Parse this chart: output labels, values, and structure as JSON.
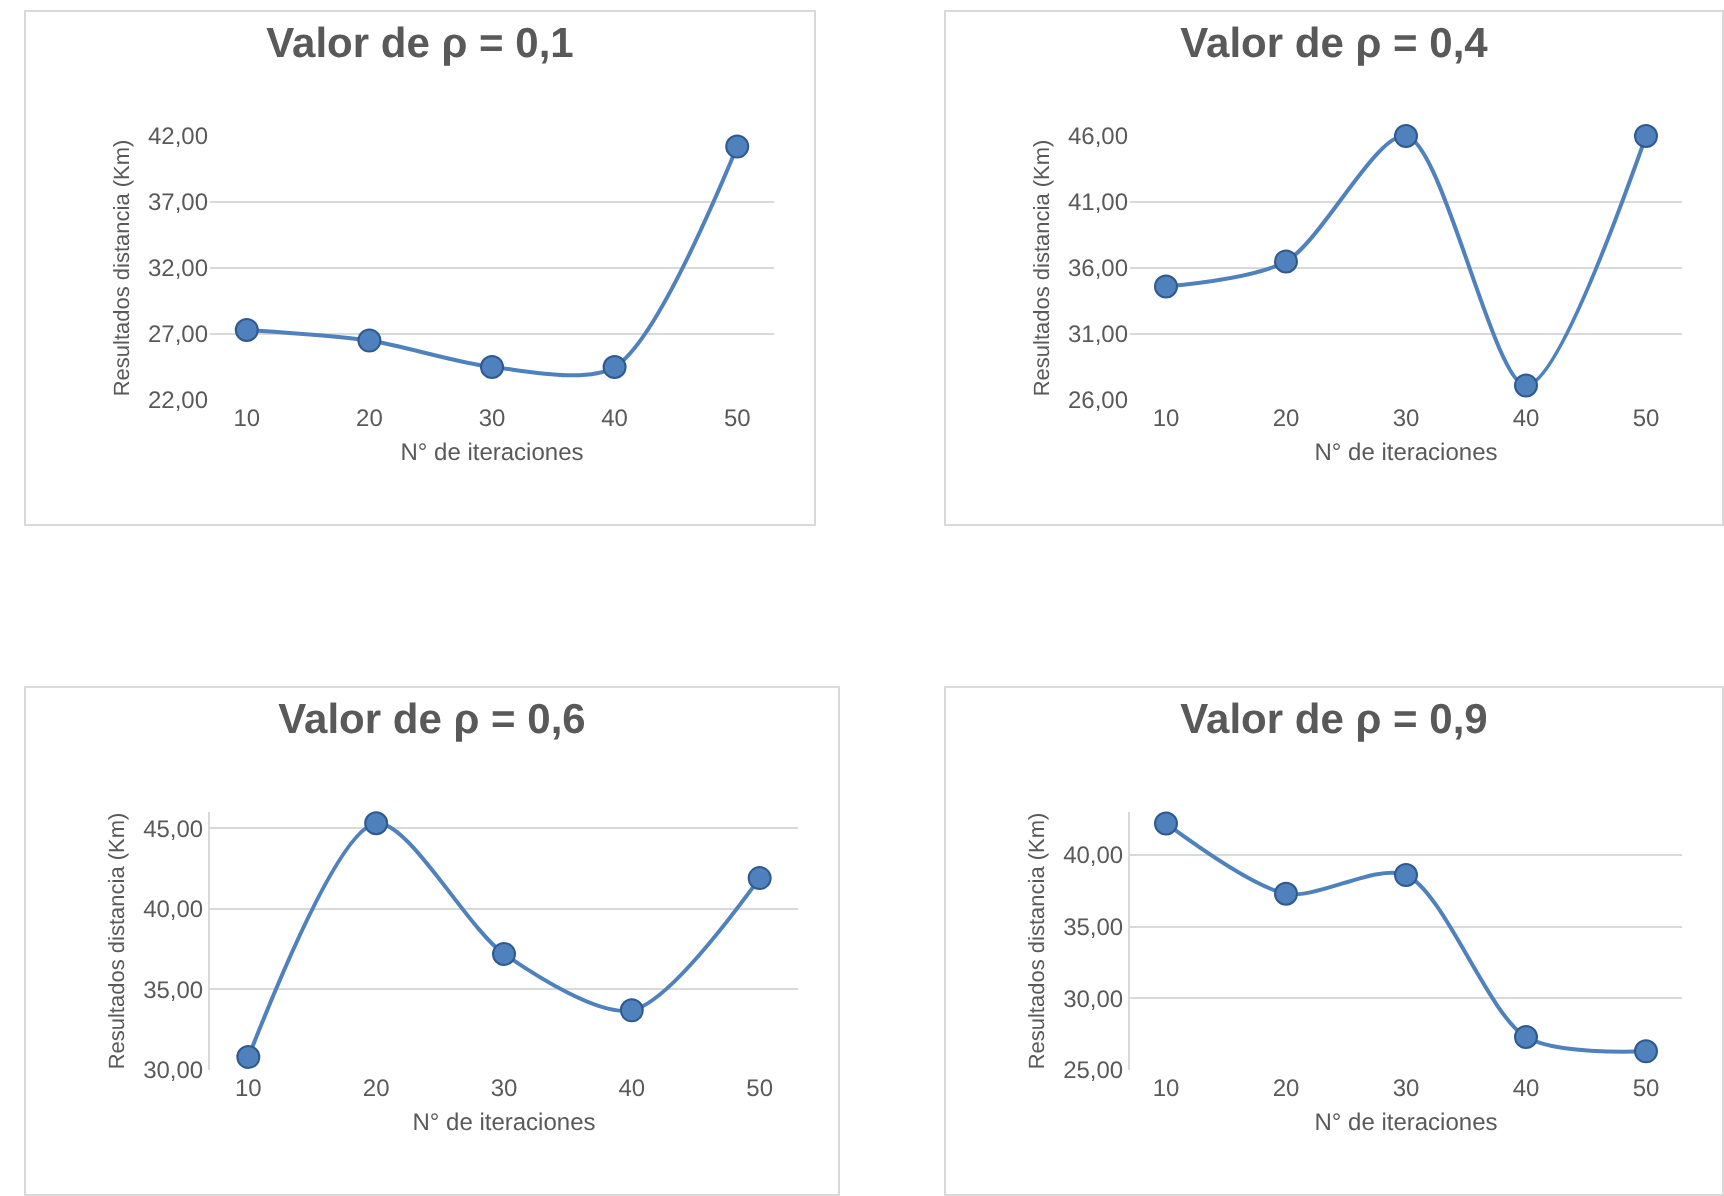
{
  "chart_data": [
    {
      "type": "line",
      "title": "Valor de ρ = 0,1",
      "xlabel": "N° de iteraciones",
      "ylabel": "Resultados distancia (Km)",
      "categories": [
        "10",
        "20",
        "30",
        "40",
        "50"
      ],
      "series": [
        {
          "color": "#4f81bd",
          "values": [
            27.3,
            26.5,
            24.5,
            24.5,
            41.2
          ]
        }
      ],
      "ylim": [
        22,
        42
      ],
      "yticks": [
        {
          "value": 22,
          "label": "22,00"
        },
        {
          "value": 27,
          "label": "27,00"
        },
        {
          "value": 32,
          "label": "32,00"
        },
        {
          "value": 37,
          "label": "37,00"
        },
        {
          "value": 42,
          "label": "42,00"
        }
      ],
      "grid": "y",
      "marker": "circle",
      "line_style": "solid",
      "legend": false
    },
    {
      "type": "line",
      "title": "Valor de ρ = 0,4",
      "xlabel": "N° de iteraciones",
      "ylabel": "Resultados distancia (Km)",
      "categories": [
        "10",
        "20",
        "30",
        "40",
        "50"
      ],
      "series": [
        {
          "color": "#4f81bd",
          "values": [
            34.6,
            36.5,
            46,
            27.1,
            46
          ]
        }
      ],
      "ylim": [
        26,
        46
      ],
      "yticks": [
        {
          "value": 26,
          "label": "26,00"
        },
        {
          "value": 31,
          "label": "31,00"
        },
        {
          "value": 36,
          "label": "36,00"
        },
        {
          "value": 41,
          "label": "41,00"
        },
        {
          "value": 46,
          "label": "46,00"
        }
      ],
      "grid": "y",
      "marker": "circle",
      "line_style": "solid",
      "legend": false
    },
    {
      "type": "line",
      "title": "Valor de ρ = 0,6",
      "xlabel": "N° de iteraciones",
      "ylabel": "Resultados distancia (Km)",
      "categories": [
        "10",
        "20",
        "30",
        "40",
        "50"
      ],
      "series": [
        {
          "color": "#4f81bd",
          "values": [
            30.8,
            45.3,
            37.2,
            33.7,
            41.9
          ]
        }
      ],
      "ylim": [
        30,
        46
      ],
      "yticks": [
        {
          "value": 30,
          "label": "30,00"
        },
        {
          "value": 35,
          "label": "35,00"
        },
        {
          "value": 40,
          "label": "40,00"
        },
        {
          "value": 45,
          "label": "45,00"
        }
      ],
      "grid": "y",
      "marker": "circle",
      "line_style": "solid",
      "legend": false
    },
    {
      "type": "line",
      "title": "Valor de ρ = 0,9",
      "xlabel": "N° de iteraciones",
      "ylabel": "Resultados distancia (Km)",
      "categories": [
        "10",
        "20",
        "30",
        "40",
        "50"
      ],
      "series": [
        {
          "color": "#4f81bd",
          "values": [
            42.2,
            37.3,
            38.6,
            27.3,
            26.3
          ]
        }
      ],
      "ylim": [
        25,
        43
      ],
      "yticks": [
        {
          "value": 25,
          "label": "25,00"
        },
        {
          "value": 30,
          "label": "30,00"
        },
        {
          "value": 35,
          "label": "35,00"
        },
        {
          "value": 40,
          "label": "40,00"
        }
      ],
      "grid": "y",
      "marker": "circle",
      "line_style": "solid",
      "legend": false
    }
  ]
}
